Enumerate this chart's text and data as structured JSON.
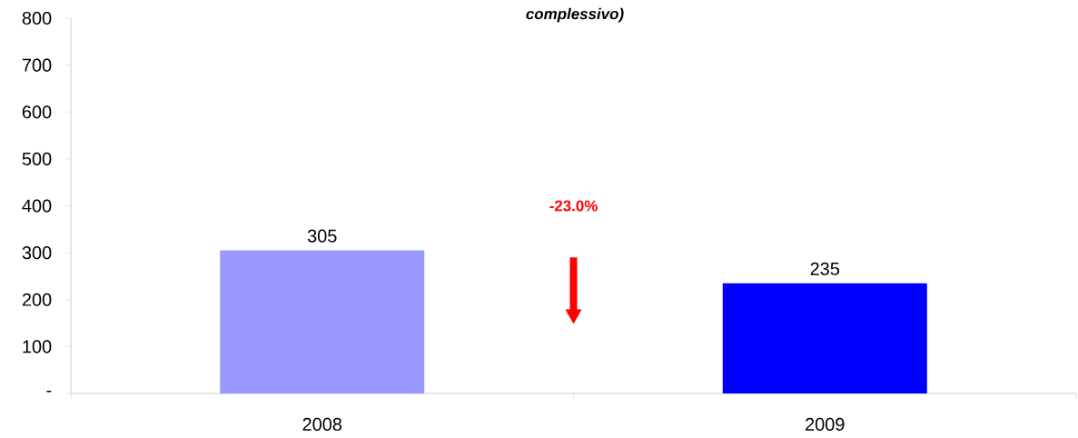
{
  "chart_data": {
    "type": "bar",
    "title": "complessivo)",
    "categories": [
      "2008",
      "2009"
    ],
    "values": [
      305,
      235
    ],
    "colors": [
      "#9999ff",
      "#0000ff"
    ],
    "ylim": [
      0,
      800
    ],
    "yticks": [
      {
        "value": 0,
        "label": "-"
      },
      100,
      200,
      300,
      400,
      500,
      600,
      700,
      800
    ],
    "data_labels": true,
    "grid": false,
    "annotations": [
      "-23.0%"
    ]
  }
}
